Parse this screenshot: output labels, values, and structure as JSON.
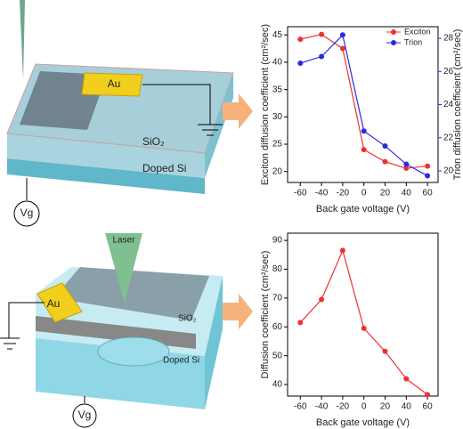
{
  "diagram": {
    "top_contact": "Au",
    "top_oxide": "SiO₂",
    "top_substrate": "Doped Si",
    "top_gate": "Vg",
    "bottom_contact": "Au",
    "bottom_laser": "Laser",
    "bottom_oxide": "SiO₂",
    "bottom_substrate": "Doped Si",
    "bottom_gate": "Vg"
  },
  "chart_data": [
    {
      "type": "line",
      "xlabel": "Back gate voltage (V)",
      "ylabel": "Exciton diffusion coefficient (cm²/sec)",
      "y2label": "Trion diffusion coefficient (cm²/sec)",
      "x": [
        -60,
        -40,
        -20,
        0,
        20,
        40,
        60
      ],
      "xlim": [
        -72,
        70
      ],
      "xticks": [
        -60,
        -40,
        -20,
        0,
        20,
        40,
        60
      ],
      "ylim": [
        18,
        46.5
      ],
      "yticks": [
        20,
        25,
        30,
        35,
        40,
        45
      ],
      "y2lim": [
        19.3,
        28.7
      ],
      "y2ticks": [
        20,
        22,
        24,
        26,
        28
      ],
      "legend": "upper-right",
      "series": [
        {
          "name": "Exciton",
          "color": "#f03030",
          "values": [
            44.2,
            45.1,
            42.5,
            24.0,
            21.8,
            20.6,
            21.0
          ]
        },
        {
          "name": "Trion",
          "color": "#2a2ae6",
          "axis": "y2",
          "values": [
            26.5,
            26.9,
            28.2,
            22.4,
            21.5,
            20.4,
            19.7
          ]
        }
      ]
    },
    {
      "type": "line",
      "xlabel": "Back gate voltage (V)",
      "ylabel": "Diffusion coefficient (cm²/sec)",
      "x": [
        -60,
        -40,
        -20,
        0,
        20,
        40,
        60
      ],
      "xlim": [
        -72,
        70
      ],
      "xticks": [
        -60,
        -40,
        -20,
        0,
        20,
        40,
        60
      ],
      "ylim": [
        36,
        92.5
      ],
      "yticks": [
        40,
        50,
        60,
        70,
        80,
        90
      ],
      "series": [
        {
          "color": "#f03030",
          "values": [
            61.5,
            69.5,
            86.5,
            59.5,
            51.5,
            42,
            36.5
          ]
        }
      ]
    }
  ]
}
